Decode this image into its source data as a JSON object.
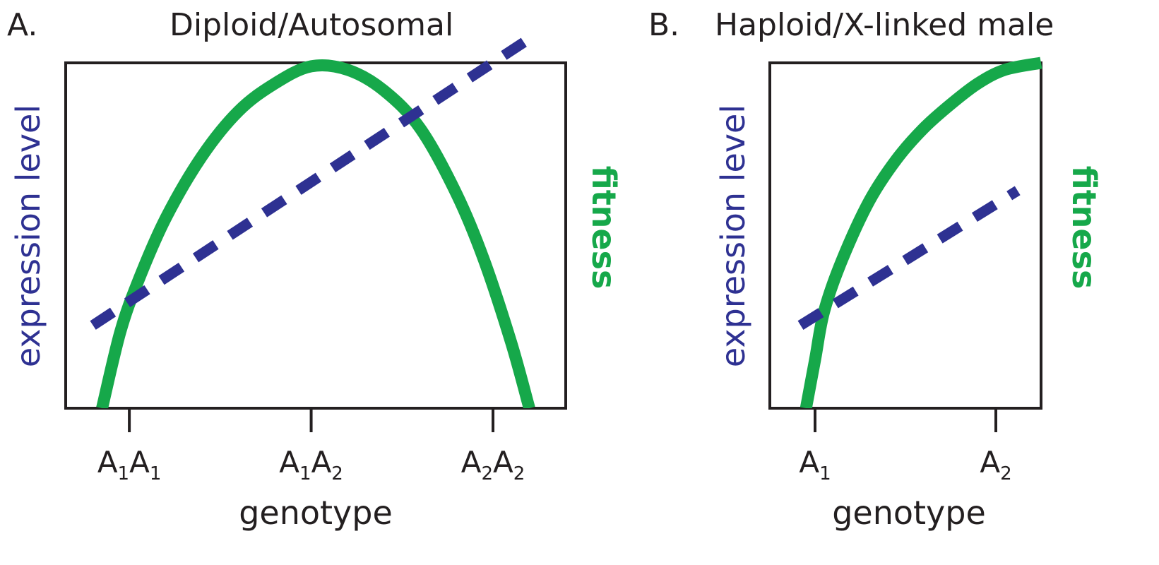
{
  "colors": {
    "fitness": "#16a84a",
    "expression": "#2e3192",
    "axes": "#231f20"
  },
  "chart_data": [
    {
      "type": "line",
      "panel_letter": "A.",
      "title": "Diploid/Autosomal",
      "xlabel": "genotype",
      "ylabel": "expression level",
      "y2label": "fitness",
      "categories": [
        "A1A1",
        "A1A2",
        "A2A2"
      ],
      "category_labels": [
        {
          "base1": "A",
          "sub1": "1",
          "base2": "A",
          "sub2": "1"
        },
        {
          "base1": "A",
          "sub1": "1",
          "base2": "A",
          "sub2": "2"
        },
        {
          "base1": "A",
          "sub1": "2",
          "base2": "A",
          "sub2": "2"
        }
      ],
      "xlim": [
        -0.35,
        2.4
      ],
      "ylim": [
        0,
        1
      ],
      "series": [
        {
          "style": "solid",
          "color": "#16a84a",
          "x": [
            -0.15,
            -0.05,
            0.05,
            0.2,
            0.4,
            0.6,
            0.8,
            1.0,
            1.2,
            1.4,
            1.6,
            1.8,
            1.95,
            2.1,
            2.2
          ],
          "y": [
            0.0,
            0.22,
            0.37,
            0.55,
            0.73,
            0.86,
            0.94,
            0.99,
            0.98,
            0.92,
            0.81,
            0.62,
            0.43,
            0.19,
            0.0
          ]
        },
        {
          "style": "dashed",
          "color": "#2e3192",
          "x": [
            -0.2,
            2.2
          ],
          "y": [
            0.24,
            1.07
          ]
        }
      ]
    },
    {
      "type": "line",
      "panel_letter": "B.",
      "title": "Haploid/X-linked male",
      "xlabel": "genotype",
      "ylabel": "expression level",
      "y2label": "fitness",
      "categories": [
        "A1",
        "A2"
      ],
      "category_labels": [
        {
          "base1": "A",
          "sub1": "1"
        },
        {
          "base1": "A",
          "sub1": "2"
        }
      ],
      "xlim": [
        -0.25,
        1.25
      ],
      "ylim": [
        0,
        1
      ],
      "series": [
        {
          "style": "solid",
          "color": "#16a84a",
          "x": [
            -0.05,
            0.0,
            0.05,
            0.15,
            0.3,
            0.45,
            0.6,
            0.75,
            0.9,
            1.05,
            1.25
          ],
          "y": [
            0.0,
            0.14,
            0.28,
            0.43,
            0.6,
            0.72,
            0.81,
            0.88,
            0.94,
            0.98,
            1.0
          ]
        },
        {
          "style": "dashed",
          "color": "#2e3192",
          "x": [
            -0.08,
            1.12
          ],
          "y": [
            0.24,
            0.63
          ]
        }
      ]
    }
  ]
}
